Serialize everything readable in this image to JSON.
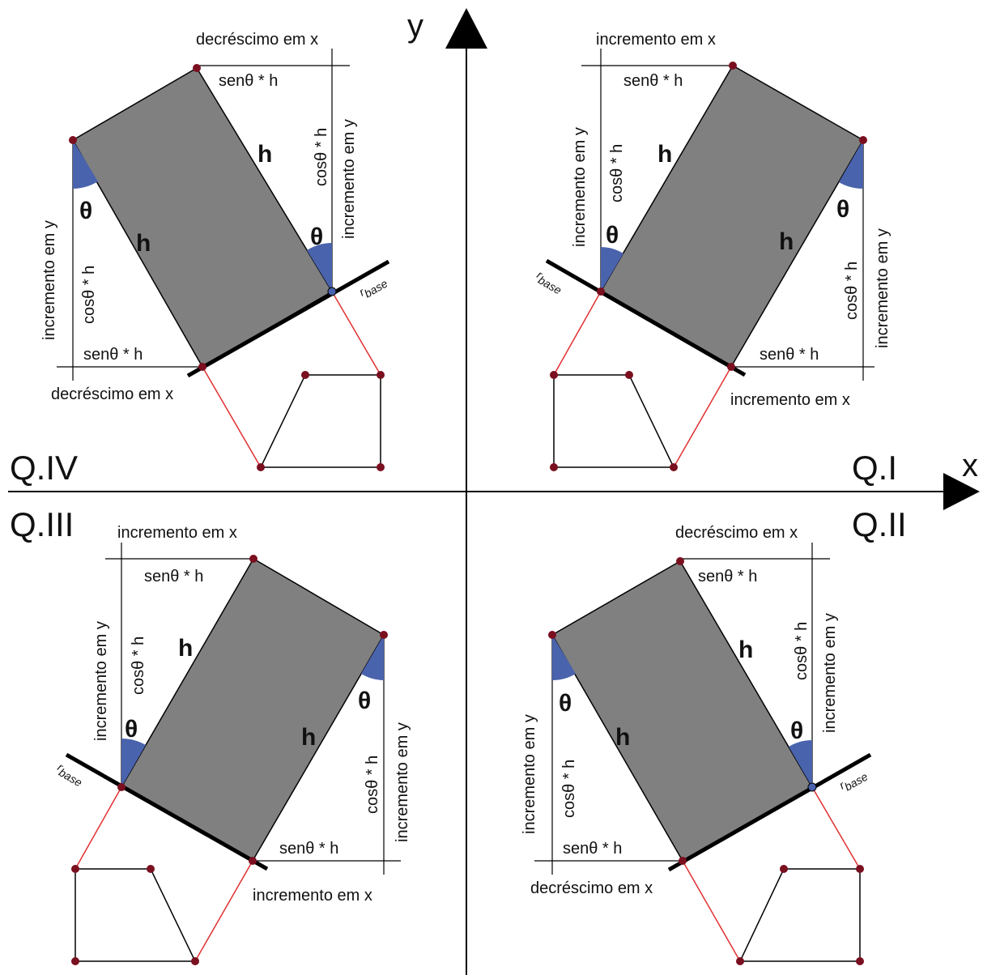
{
  "axes": {
    "x_label": "x",
    "y_label": "y"
  },
  "quadrants": {
    "q1": "Q.I",
    "q2": "Q.II",
    "q3": "Q.III",
    "q4": "Q.IV"
  },
  "labels": {
    "incremento_x": "incremento em x",
    "decrescimo_x": "decréscimo em x",
    "incremento_y": "incremento em y",
    "sen_h": "senθ * h",
    "cos_h": "cosθ * h",
    "h": "h",
    "theta": "θ",
    "r": "r",
    "base": "base"
  },
  "colors": {
    "rect_fill": "#808080",
    "angle_fill": "#4a63ad",
    "joint": "#7a0f1f",
    "link": "#e23030"
  }
}
